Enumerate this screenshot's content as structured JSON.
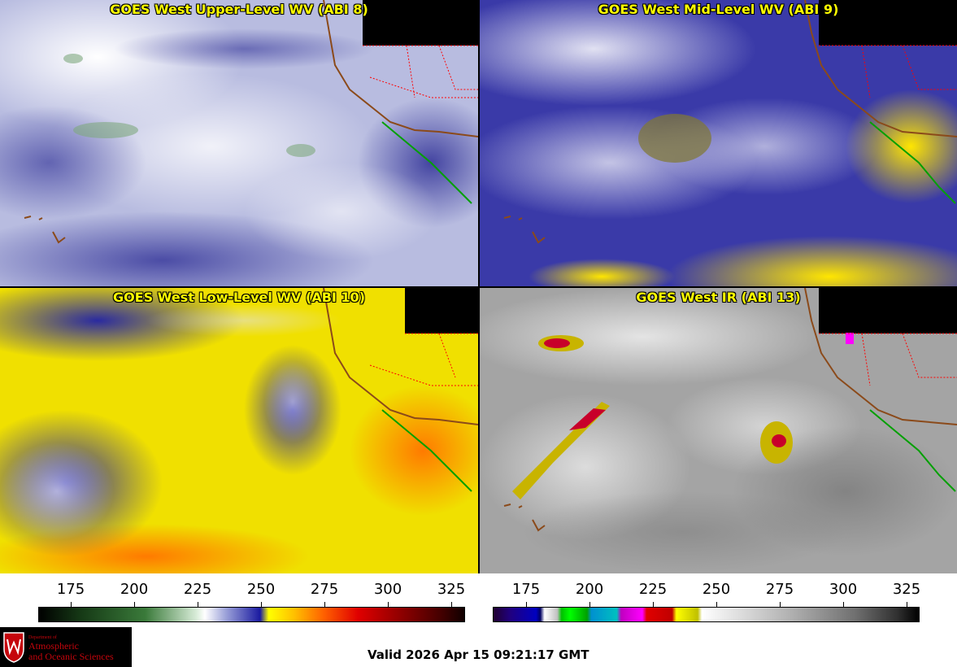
{
  "panels": [
    {
      "title": "GOES West Upper-Level WV (ABI 8)"
    },
    {
      "title": "GOES West Mid-Level WV (ABI 9)"
    },
    {
      "title": "GOES West Low-Level WV (ABI 10)"
    },
    {
      "title": "GOES West IR (ABI 13)"
    }
  ],
  "colorbars": [
    {
      "ticks": [
        "175",
        "200",
        "225",
        "250",
        "275",
        "300",
        "325"
      ]
    },
    {
      "ticks": [
        "175",
        "200",
        "225",
        "250",
        "275",
        "300",
        "325"
      ]
    }
  ],
  "logo": {
    "line1": "Department of",
    "line2": "Atmospheric",
    "line3": "and Oceanic Sciences"
  },
  "valid_time": "Valid 2026 Apr 15 09:21:17 GMT",
  "colors": {
    "title_text": "#ffff00",
    "coastline": "#8b4a1a",
    "state_borders": "#ff0000",
    "mexico_coast": "#00a000"
  }
}
